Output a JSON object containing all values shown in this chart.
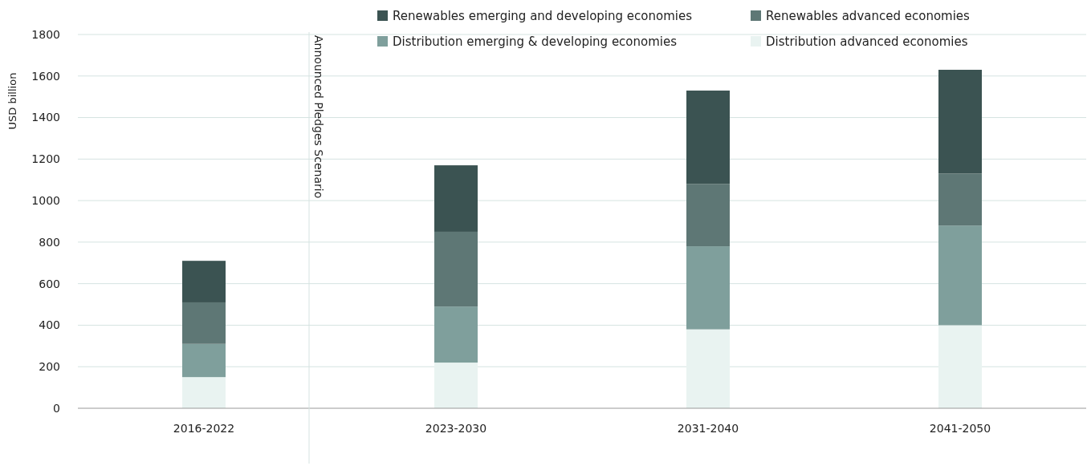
{
  "chart_data": {
    "type": "bar",
    "stacked": true,
    "ylabel": "USD billion",
    "categories": [
      "2016-2022",
      "2023-2030",
      "2031-2040",
      "2041-2050"
    ],
    "series": [
      {
        "name": "Distribution advanced economies",
        "color": "#e9f3f1",
        "values": [
          150,
          220,
          380,
          400
        ]
      },
      {
        "name": "Distribution emerging & developing economies",
        "color": "#7f9f9c",
        "values": [
          160,
          270,
          400,
          480
        ]
      },
      {
        "name": "Renewables advanced economies",
        "color": "#5e7775",
        "values": [
          200,
          360,
          300,
          250
        ]
      },
      {
        "name": "Renewables emerging and developing economies",
        "color": "#3b5352",
        "values": [
          200,
          320,
          450,
          500
        ]
      }
    ],
    "ylim": [
      0,
      1800
    ],
    "yticks": [
      0,
      200,
      400,
      600,
      800,
      1000,
      1200,
      1400,
      1600,
      1800
    ],
    "grid": "y",
    "legend": "top",
    "annotations": [
      "Announced Pledges Scenario"
    ]
  }
}
